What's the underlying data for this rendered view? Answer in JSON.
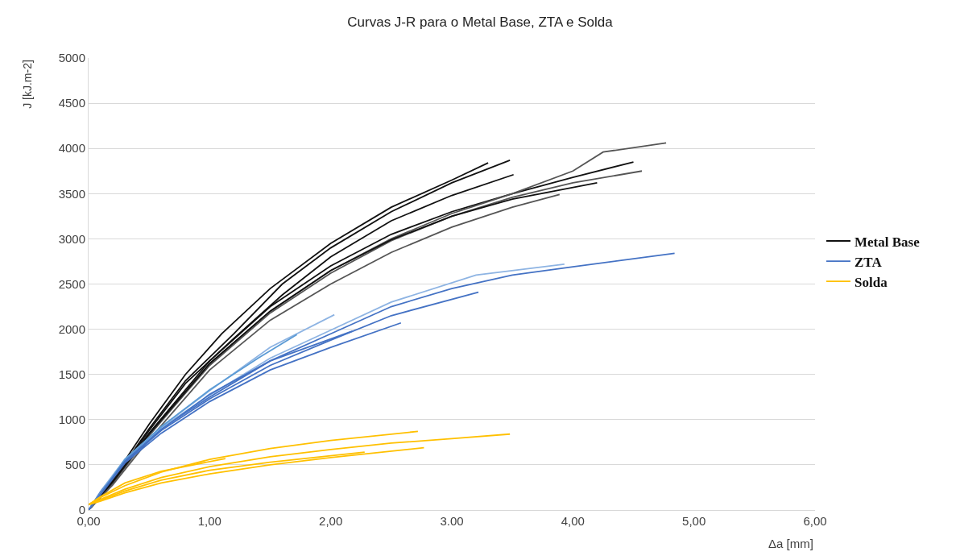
{
  "chart_data": {
    "type": "line",
    "title": "Curvas J-R para o Metal Base, ZTA e Solda",
    "xlabel": "Δa [mm]",
    "ylabel": "J [kJ.m-2]",
    "xlim": [
      0,
      6
    ],
    "xticks": [
      {
        "value": 0,
        "label": "0,00"
      },
      {
        "value": 1,
        "label": "1,00"
      },
      {
        "value": 2,
        "label": "2,00"
      },
      {
        "value": 3,
        "label": "3.00"
      },
      {
        "value": 4,
        "label": "4,00"
      },
      {
        "value": 5,
        "label": "5,00"
      },
      {
        "value": 6,
        "label": "6,00"
      }
    ],
    "ylim": [
      0,
      5000
    ],
    "yticks": [
      0,
      500,
      1000,
      1500,
      2000,
      2500,
      3000,
      3500,
      4000,
      4500,
      5000
    ],
    "grid": "y",
    "legend": "right",
    "marker": "none",
    "line_style": "solid",
    "series": [
      {
        "name": "Metal Base",
        "color": "#111111",
        "x": [
          0,
          0.2,
          0.5,
          0.8,
          1.1,
          1.5,
          2.0,
          2.5,
          3.0,
          3.3
        ],
        "values": [
          0,
          350,
          950,
          1500,
          1950,
          2450,
          2950,
          3350,
          3650,
          3840
        ]
      },
      {
        "color": "#111111",
        "x": [
          0,
          0.2,
          0.5,
          0.8,
          1.2,
          1.6,
          2.0,
          2.5,
          3.0,
          3.48
        ],
        "values": [
          0,
          330,
          900,
          1430,
          1950,
          2500,
          2900,
          3300,
          3620,
          3870
        ]
      },
      {
        "color": "#111111",
        "x": [
          0,
          0.2,
          0.5,
          0.8,
          1.2,
          1.6,
          2.0,
          2.5,
          3.0,
          3.51
        ],
        "values": [
          0,
          320,
          880,
          1400,
          1900,
          2380,
          2800,
          3200,
          3480,
          3710
        ]
      },
      {
        "color": "#111111",
        "x": [
          0,
          0.2,
          0.5,
          1.0,
          1.5,
          2.0,
          2.5,
          3.0,
          3.5,
          4.0,
          4.5
        ],
        "values": [
          0,
          320,
          850,
          1650,
          2250,
          2700,
          3050,
          3300,
          3500,
          3680,
          3850
        ]
      },
      {
        "color": "#555555",
        "x": [
          0,
          0.2,
          0.5,
          1.0,
          1.5,
          2.0,
          2.5,
          3.0,
          3.5,
          4.0,
          4.25,
          4.77
        ],
        "values": [
          0,
          300,
          820,
          1620,
          2200,
          2650,
          3000,
          3280,
          3500,
          3750,
          3960,
          4060
        ]
      },
      {
        "color": "#555555",
        "x": [
          0,
          0.2,
          0.5,
          1.0,
          1.5,
          2.0,
          2.5,
          3.0,
          3.5,
          4.0,
          4.57
        ],
        "values": [
          0,
          300,
          830,
          1600,
          2180,
          2620,
          2980,
          3250,
          3460,
          3620,
          3750
        ]
      },
      {
        "color": "#111111",
        "x": [
          0,
          0.2,
          0.5,
          1.0,
          1.5,
          2.0,
          2.5,
          3.0,
          3.5,
          4.2
        ],
        "values": [
          0,
          310,
          840,
          1620,
          2200,
          2650,
          2990,
          3250,
          3440,
          3620
        ]
      },
      {
        "color": "#555555",
        "x": [
          0,
          0.2,
          0.5,
          1.0,
          1.5,
          2.0,
          2.5,
          3.0,
          3.5,
          3.89
        ],
        "values": [
          0,
          280,
          780,
          1550,
          2100,
          2500,
          2850,
          3130,
          3350,
          3490
        ]
      },
      {
        "name": "ZTA",
        "color": "#4472c4",
        "x": [
          0,
          0.1,
          0.3,
          0.6,
          1.0,
          1.5,
          2.0,
          2.5,
          3.0,
          3.5,
          4.0,
          4.84
        ],
        "values": [
          0,
          200,
          550,
          900,
          1250,
          1650,
          1950,
          2250,
          2450,
          2600,
          2690,
          2840
        ]
      },
      {
        "color": "#8eb4e3",
        "x": [
          0,
          0.1,
          0.3,
          0.6,
          1.0,
          1.5,
          2.0,
          2.5,
          3.2,
          3.93
        ],
        "values": [
          0,
          210,
          560,
          910,
          1270,
          1680,
          1990,
          2300,
          2600,
          2720
        ]
      },
      {
        "color": "#4472c4",
        "x": [
          0,
          0.1,
          0.3,
          0.6,
          1.0,
          1.5,
          2.0,
          2.5,
          3.22
        ],
        "values": [
          0,
          200,
          530,
          880,
          1230,
          1600,
          1880,
          2150,
          2410
        ]
      },
      {
        "color": "#4472c4",
        "x": [
          0,
          0.3,
          0.6,
          1.0,
          1.5,
          2.0,
          2.58
        ],
        "values": [
          0,
          520,
          850,
          1200,
          1550,
          1800,
          2070
        ]
      },
      {
        "color": "#8eb4e3",
        "x": [
          0,
          0.3,
          0.6,
          1.0,
          1.5,
          2.03
        ],
        "values": [
          0,
          560,
          920,
          1320,
          1800,
          2160
        ]
      },
      {
        "color": "#5b9bd5",
        "x": [
          0,
          0.3,
          0.6,
          1.0,
          1.4,
          1.72
        ],
        "values": [
          0,
          560,
          920,
          1330,
          1680,
          1940
        ]
      },
      {
        "color": "#4472c4",
        "x": [
          0,
          0.3,
          0.6,
          1.0,
          1.5,
          2.18
        ],
        "values": [
          0,
          540,
          890,
          1280,
          1650,
          1980
        ]
      },
      {
        "name": "Solda",
        "color": "#ffc000",
        "x": [
          0,
          0.1,
          0.3,
          0.6,
          1.0,
          1.5,
          2.0,
          2.72
        ],
        "values": [
          60,
          140,
          270,
          420,
          560,
          680,
          770,
          870
        ]
      },
      {
        "color": "#ffc000",
        "x": [
          0,
          0.1,
          0.3,
          0.6,
          1.0,
          1.5,
          2.0,
          2.5,
          3.0,
          3.48
        ],
        "values": [
          60,
          120,
          230,
          360,
          480,
          590,
          670,
          740,
          790,
          840
        ]
      },
      {
        "color": "#ffc000",
        "x": [
          0,
          0.1,
          0.3,
          0.6,
          1.0,
          1.5,
          2.0,
          2.77
        ],
        "values": [
          60,
          100,
          190,
          300,
          400,
          500,
          580,
          690
        ]
      },
      {
        "color": "#ffc000",
        "x": [
          0,
          0.1,
          0.3,
          0.6,
          1.0,
          1.5,
          2.28
        ],
        "values": [
          60,
          110,
          210,
          330,
          440,
          530,
          640
        ]
      },
      {
        "color": "#ffc000",
        "x": [
          0,
          0.1,
          0.3,
          0.6,
          1.13
        ],
        "values": [
          60,
          150,
          300,
          430,
          570
        ]
      }
    ]
  }
}
